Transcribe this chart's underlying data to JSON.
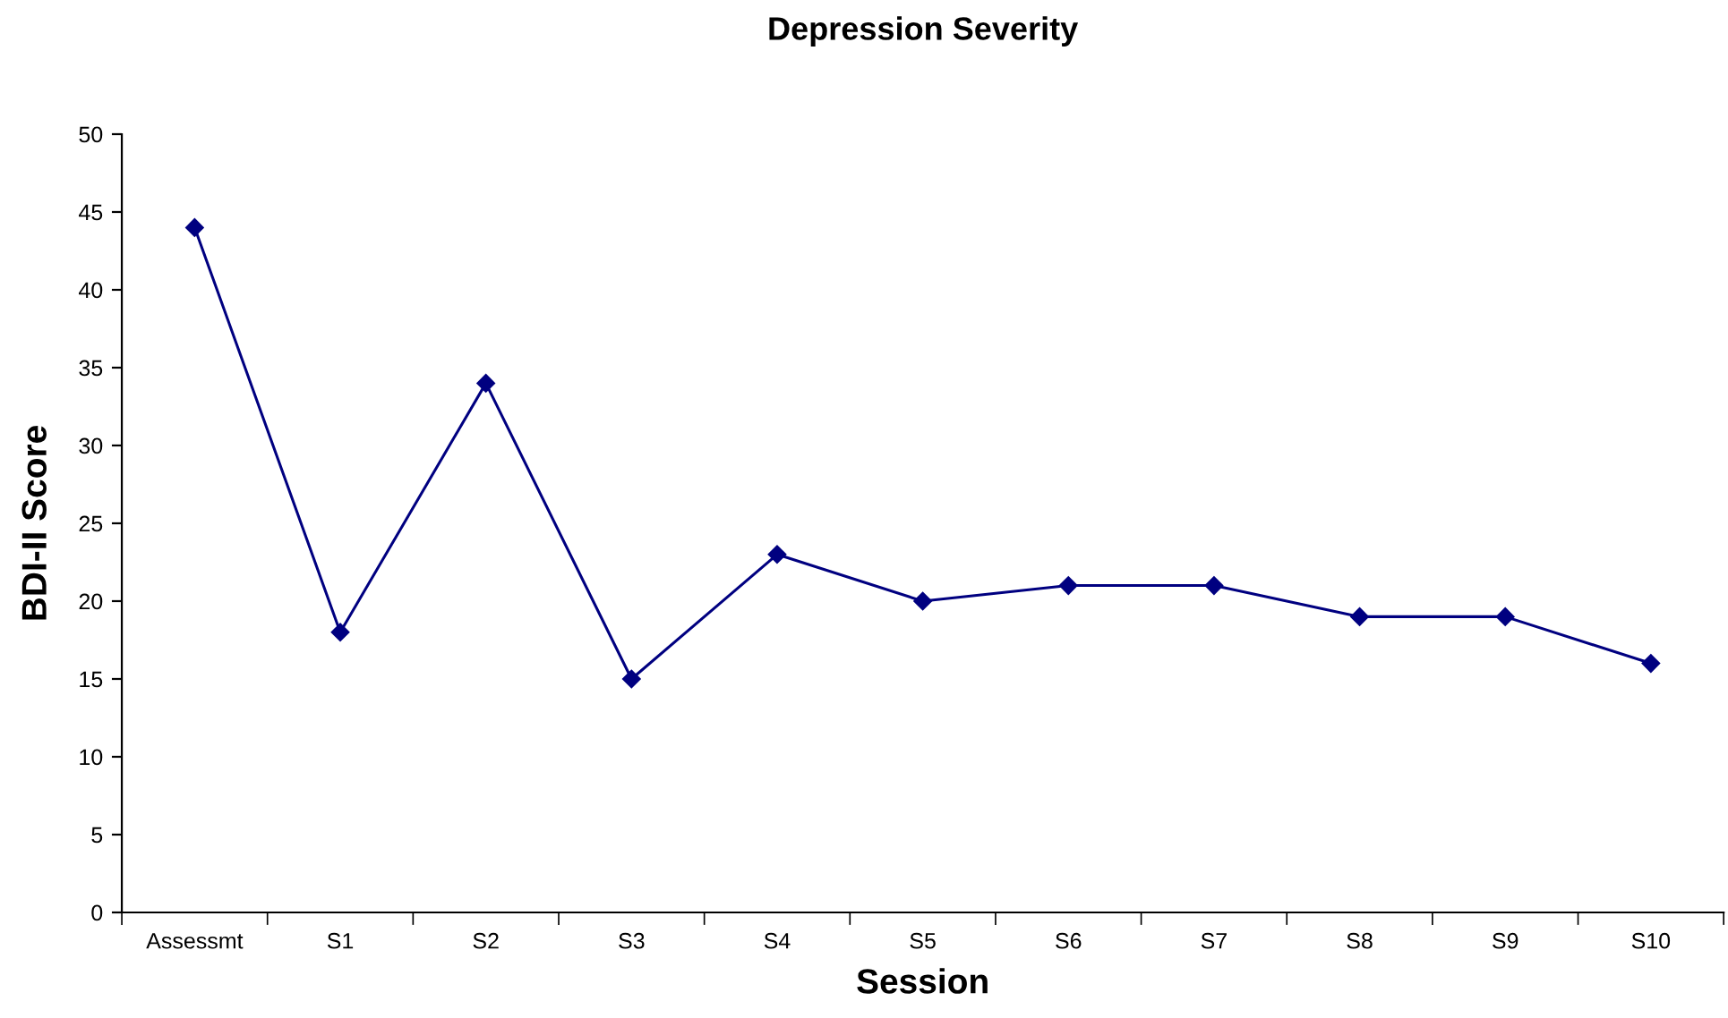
{
  "chart_data": {
    "type": "line",
    "title": "Depression Severity",
    "xlabel": "Session",
    "ylabel": "BDI-II Score",
    "categories": [
      "Assessmt",
      "S1",
      "S2",
      "S3",
      "S4",
      "S5",
      "S6",
      "S7",
      "S8",
      "S9",
      "S10"
    ],
    "series": [
      {
        "color": "#000080",
        "values": [
          44,
          18,
          34,
          15,
          23,
          20,
          21,
          21,
          19,
          19,
          16
        ]
      }
    ],
    "ylim": [
      0,
      50
    ],
    "yticks": [
      0,
      5,
      10,
      15,
      20,
      25,
      30,
      35,
      40,
      45,
      50
    ],
    "grid": false,
    "legend": false,
    "marker": "diamond",
    "line_style": "solid"
  }
}
